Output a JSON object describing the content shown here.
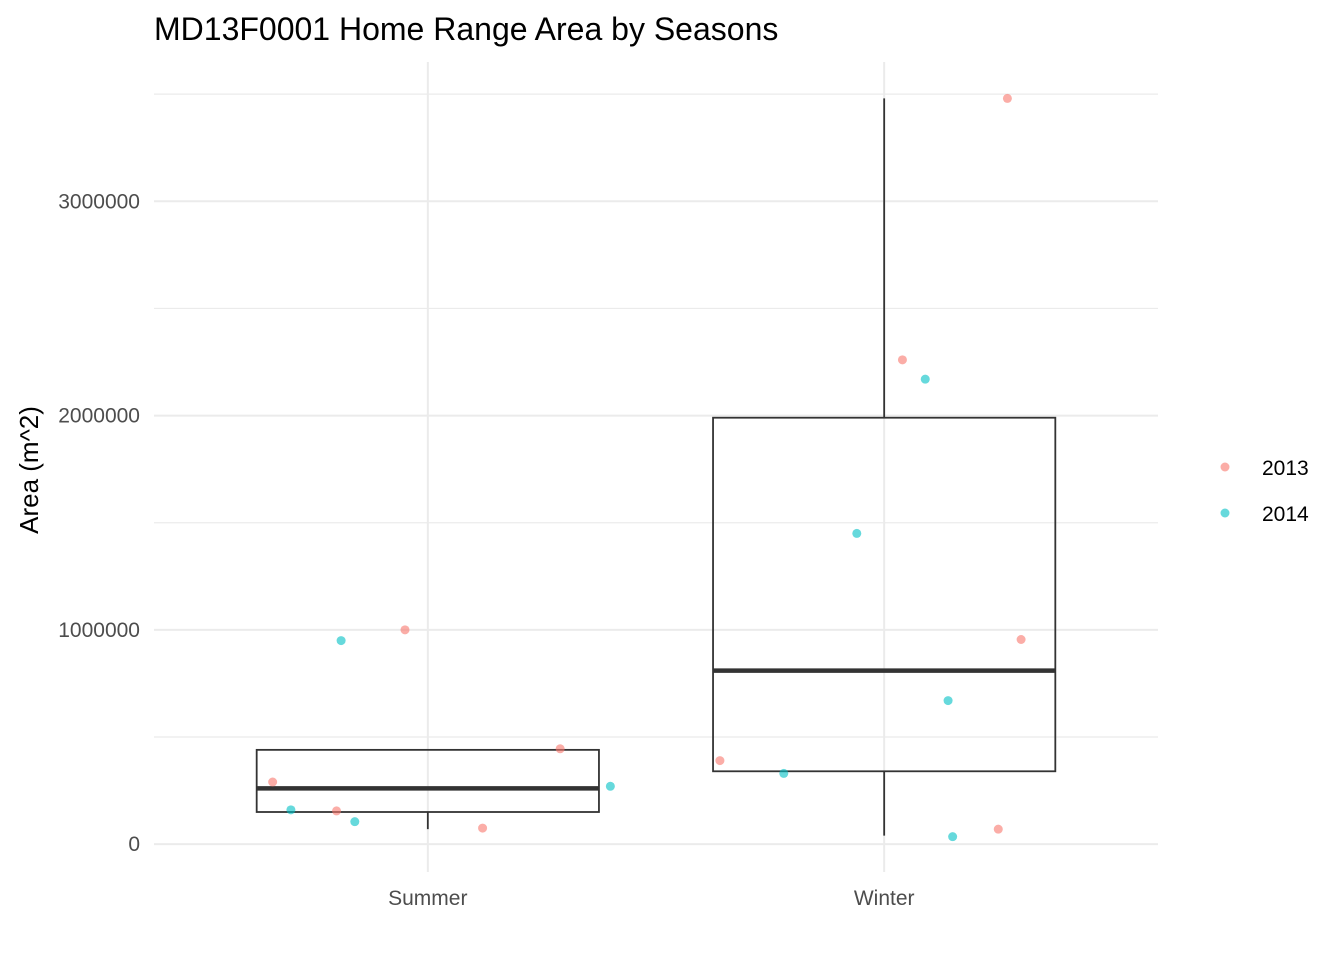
{
  "chart_data": {
    "type": "box",
    "title": "MD13F0001 Home Range Area by Seasons",
    "xlabel": "",
    "ylabel": "Area (m^2)",
    "categories": [
      "Summer",
      "Winter"
    ],
    "ylim": [
      -130000,
      3650000
    ],
    "yticks": [
      0,
      1000000,
      2000000,
      3000000
    ],
    "ytick_labels": [
      "0",
      "1000000",
      "2000000",
      "3000000"
    ],
    "grid": true,
    "legend_position": "right",
    "colors": {
      "2013": "#F8766D",
      "2014": "#00BFC4",
      "box": "#333333",
      "grid": "#ebebeb"
    },
    "boxes": [
      {
        "category": "Summer",
        "whisker_low": 70000,
        "q1": 150000,
        "median": 260000,
        "q3": 440000,
        "whisker_high": 440000
      },
      {
        "category": "Winter",
        "whisker_low": 40000,
        "q1": 340000,
        "median": 810000,
        "q3": 1990000,
        "whisker_high": 3480000
      }
    ],
    "series": [
      {
        "name": "2013",
        "points": [
          {
            "x": "Summer",
            "y": 290000
          },
          {
            "x": "Summer",
            "y": 155000
          },
          {
            "x": "Summer",
            "y": 1000000
          },
          {
            "x": "Summer",
            "y": 75000
          },
          {
            "x": "Summer",
            "y": 445000
          },
          {
            "x": "Winter",
            "y": 390000
          },
          {
            "x": "Winter",
            "y": 2260000
          },
          {
            "x": "Winter",
            "y": 3480000
          },
          {
            "x": "Winter",
            "y": 70000
          },
          {
            "x": "Winter",
            "y": 955000
          }
        ]
      },
      {
        "name": "2014",
        "points": [
          {
            "x": "Summer",
            "y": 160000
          },
          {
            "x": "Summer",
            "y": 950000
          },
          {
            "x": "Summer",
            "y": 105000
          },
          {
            "x": "Summer",
            "y": 270000
          },
          {
            "x": "Winter",
            "y": 330000
          },
          {
            "x": "Winter",
            "y": 1450000
          },
          {
            "x": "Winter",
            "y": 2170000
          },
          {
            "x": "Winter",
            "y": 670000
          },
          {
            "x": "Winter",
            "y": 35000
          }
        ]
      }
    ],
    "legend": [
      "2013",
      "2014"
    ]
  }
}
